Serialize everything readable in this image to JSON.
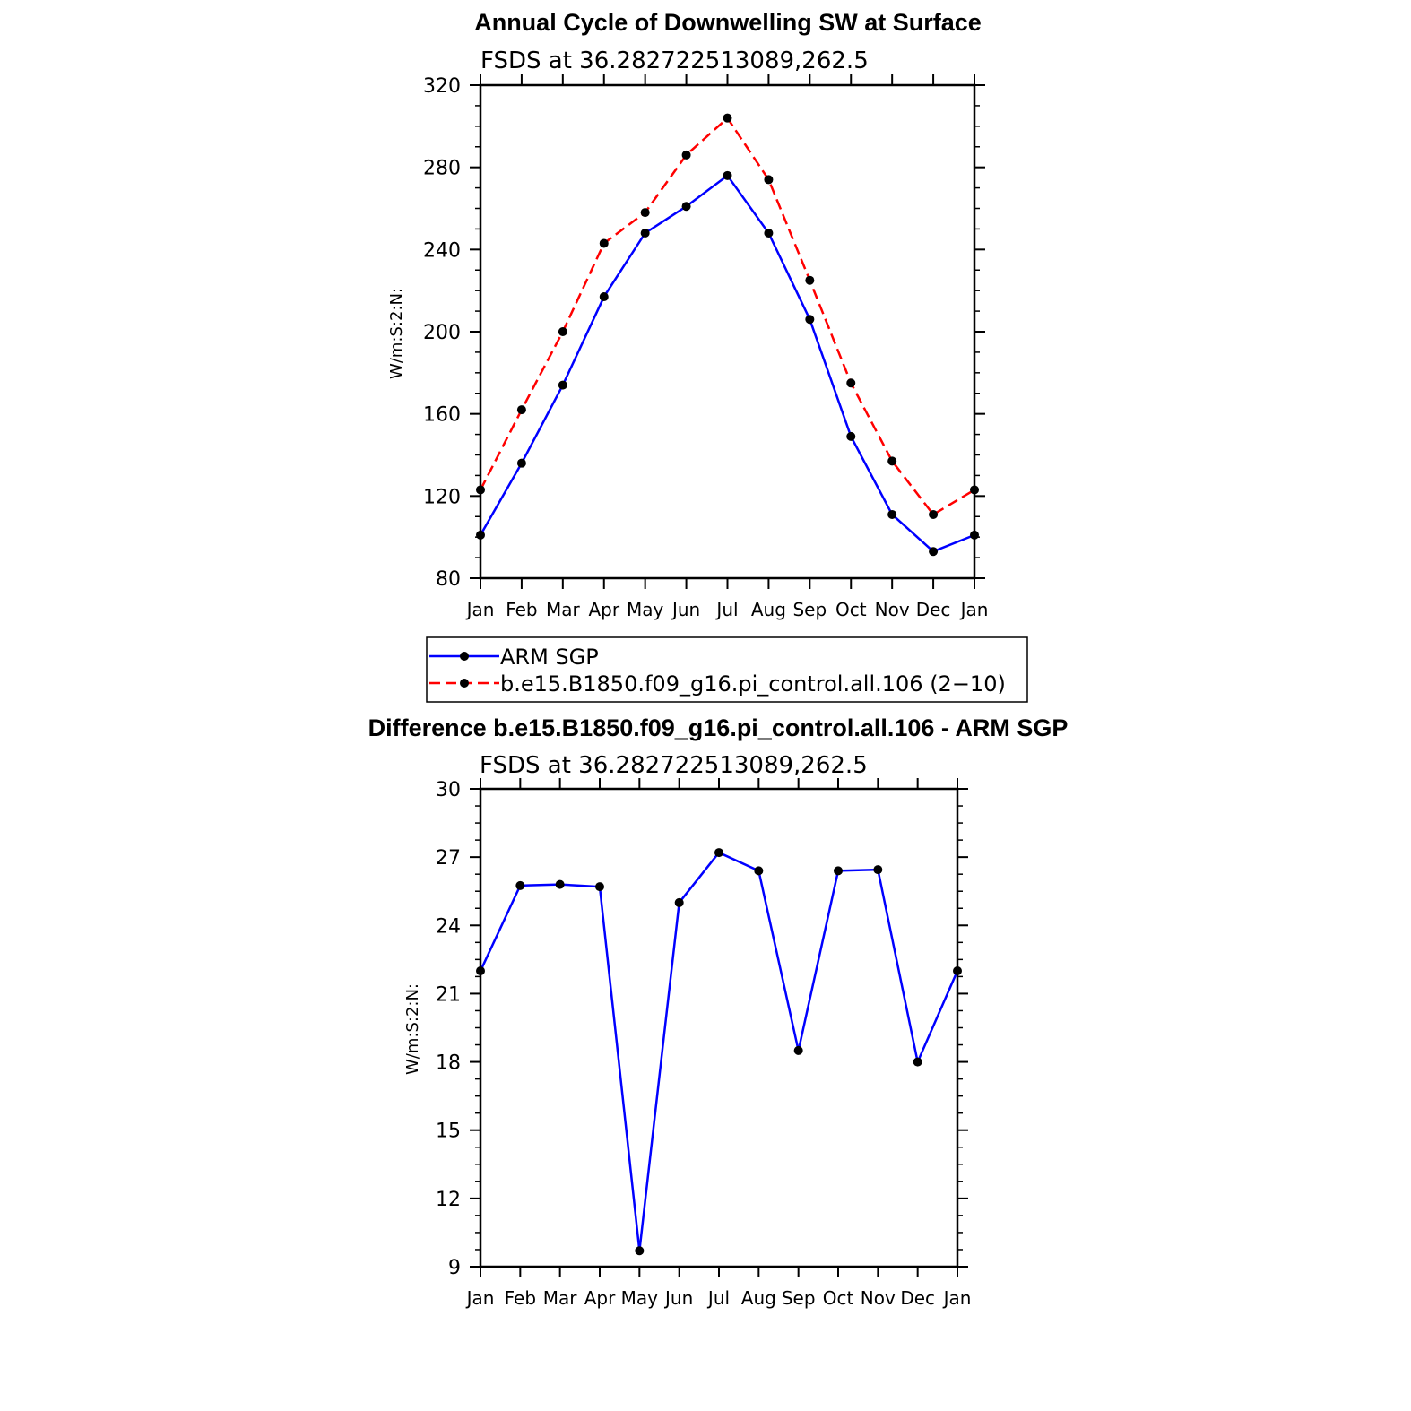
{
  "chart_data": [
    {
      "type": "line",
      "title": "Annual Cycle of Downwelling SW at Surface",
      "subtitle": "FSDS at 36.282722513089,262.5",
      "xlabel": "",
      "ylabel": "W/m:S:2:N:",
      "categories": [
        "Jan",
        "Feb",
        "Mar",
        "Apr",
        "May",
        "Jun",
        "Jul",
        "Aug",
        "Sep",
        "Oct",
        "Nov",
        "Dec",
        "Jan"
      ],
      "ylim": [
        80,
        320
      ],
      "yticks": [
        80,
        120,
        160,
        200,
        240,
        280,
        320
      ],
      "grid": false,
      "legend_position": "bottom",
      "series": [
        {
          "name": "ARM SGP",
          "color": "#0000ff",
          "dash": false,
          "values": [
            101,
            136,
            174,
            217,
            248,
            261,
            276,
            248,
            206,
            149,
            111,
            93,
            101
          ]
        },
        {
          "name": "b.e15.B1850.f09_g16.pi_control.all.106 (2−10)",
          "color": "#ff0000",
          "dash": true,
          "values": [
            123,
            162,
            200,
            243,
            258,
            286,
            304,
            274,
            225,
            175,
            137,
            111,
            123
          ]
        }
      ]
    },
    {
      "type": "line",
      "title": "Difference b.e15.B1850.f09_g16.pi_control.all.106 - ARM SGP",
      "subtitle": "FSDS at 36.282722513089,262.5",
      "xlabel": "",
      "ylabel": "W/m:S:2:N:",
      "categories": [
        "Jan",
        "Feb",
        "Mar",
        "Apr",
        "May",
        "Jun",
        "Jul",
        "Aug",
        "Sep",
        "Oct",
        "Nov",
        "Dec",
        "Jan"
      ],
      "ylim": [
        9,
        30
      ],
      "yticks": [
        9,
        12,
        15,
        18,
        21,
        24,
        27,
        30
      ],
      "grid": false,
      "series": [
        {
          "color": "#0000ff",
          "dash": false,
          "values": [
            22.0,
            25.75,
            25.8,
            25.7,
            9.7,
            25.0,
            27.2,
            26.4,
            18.5,
            26.4,
            26.45,
            18.0,
            22.0
          ]
        }
      ]
    }
  ]
}
